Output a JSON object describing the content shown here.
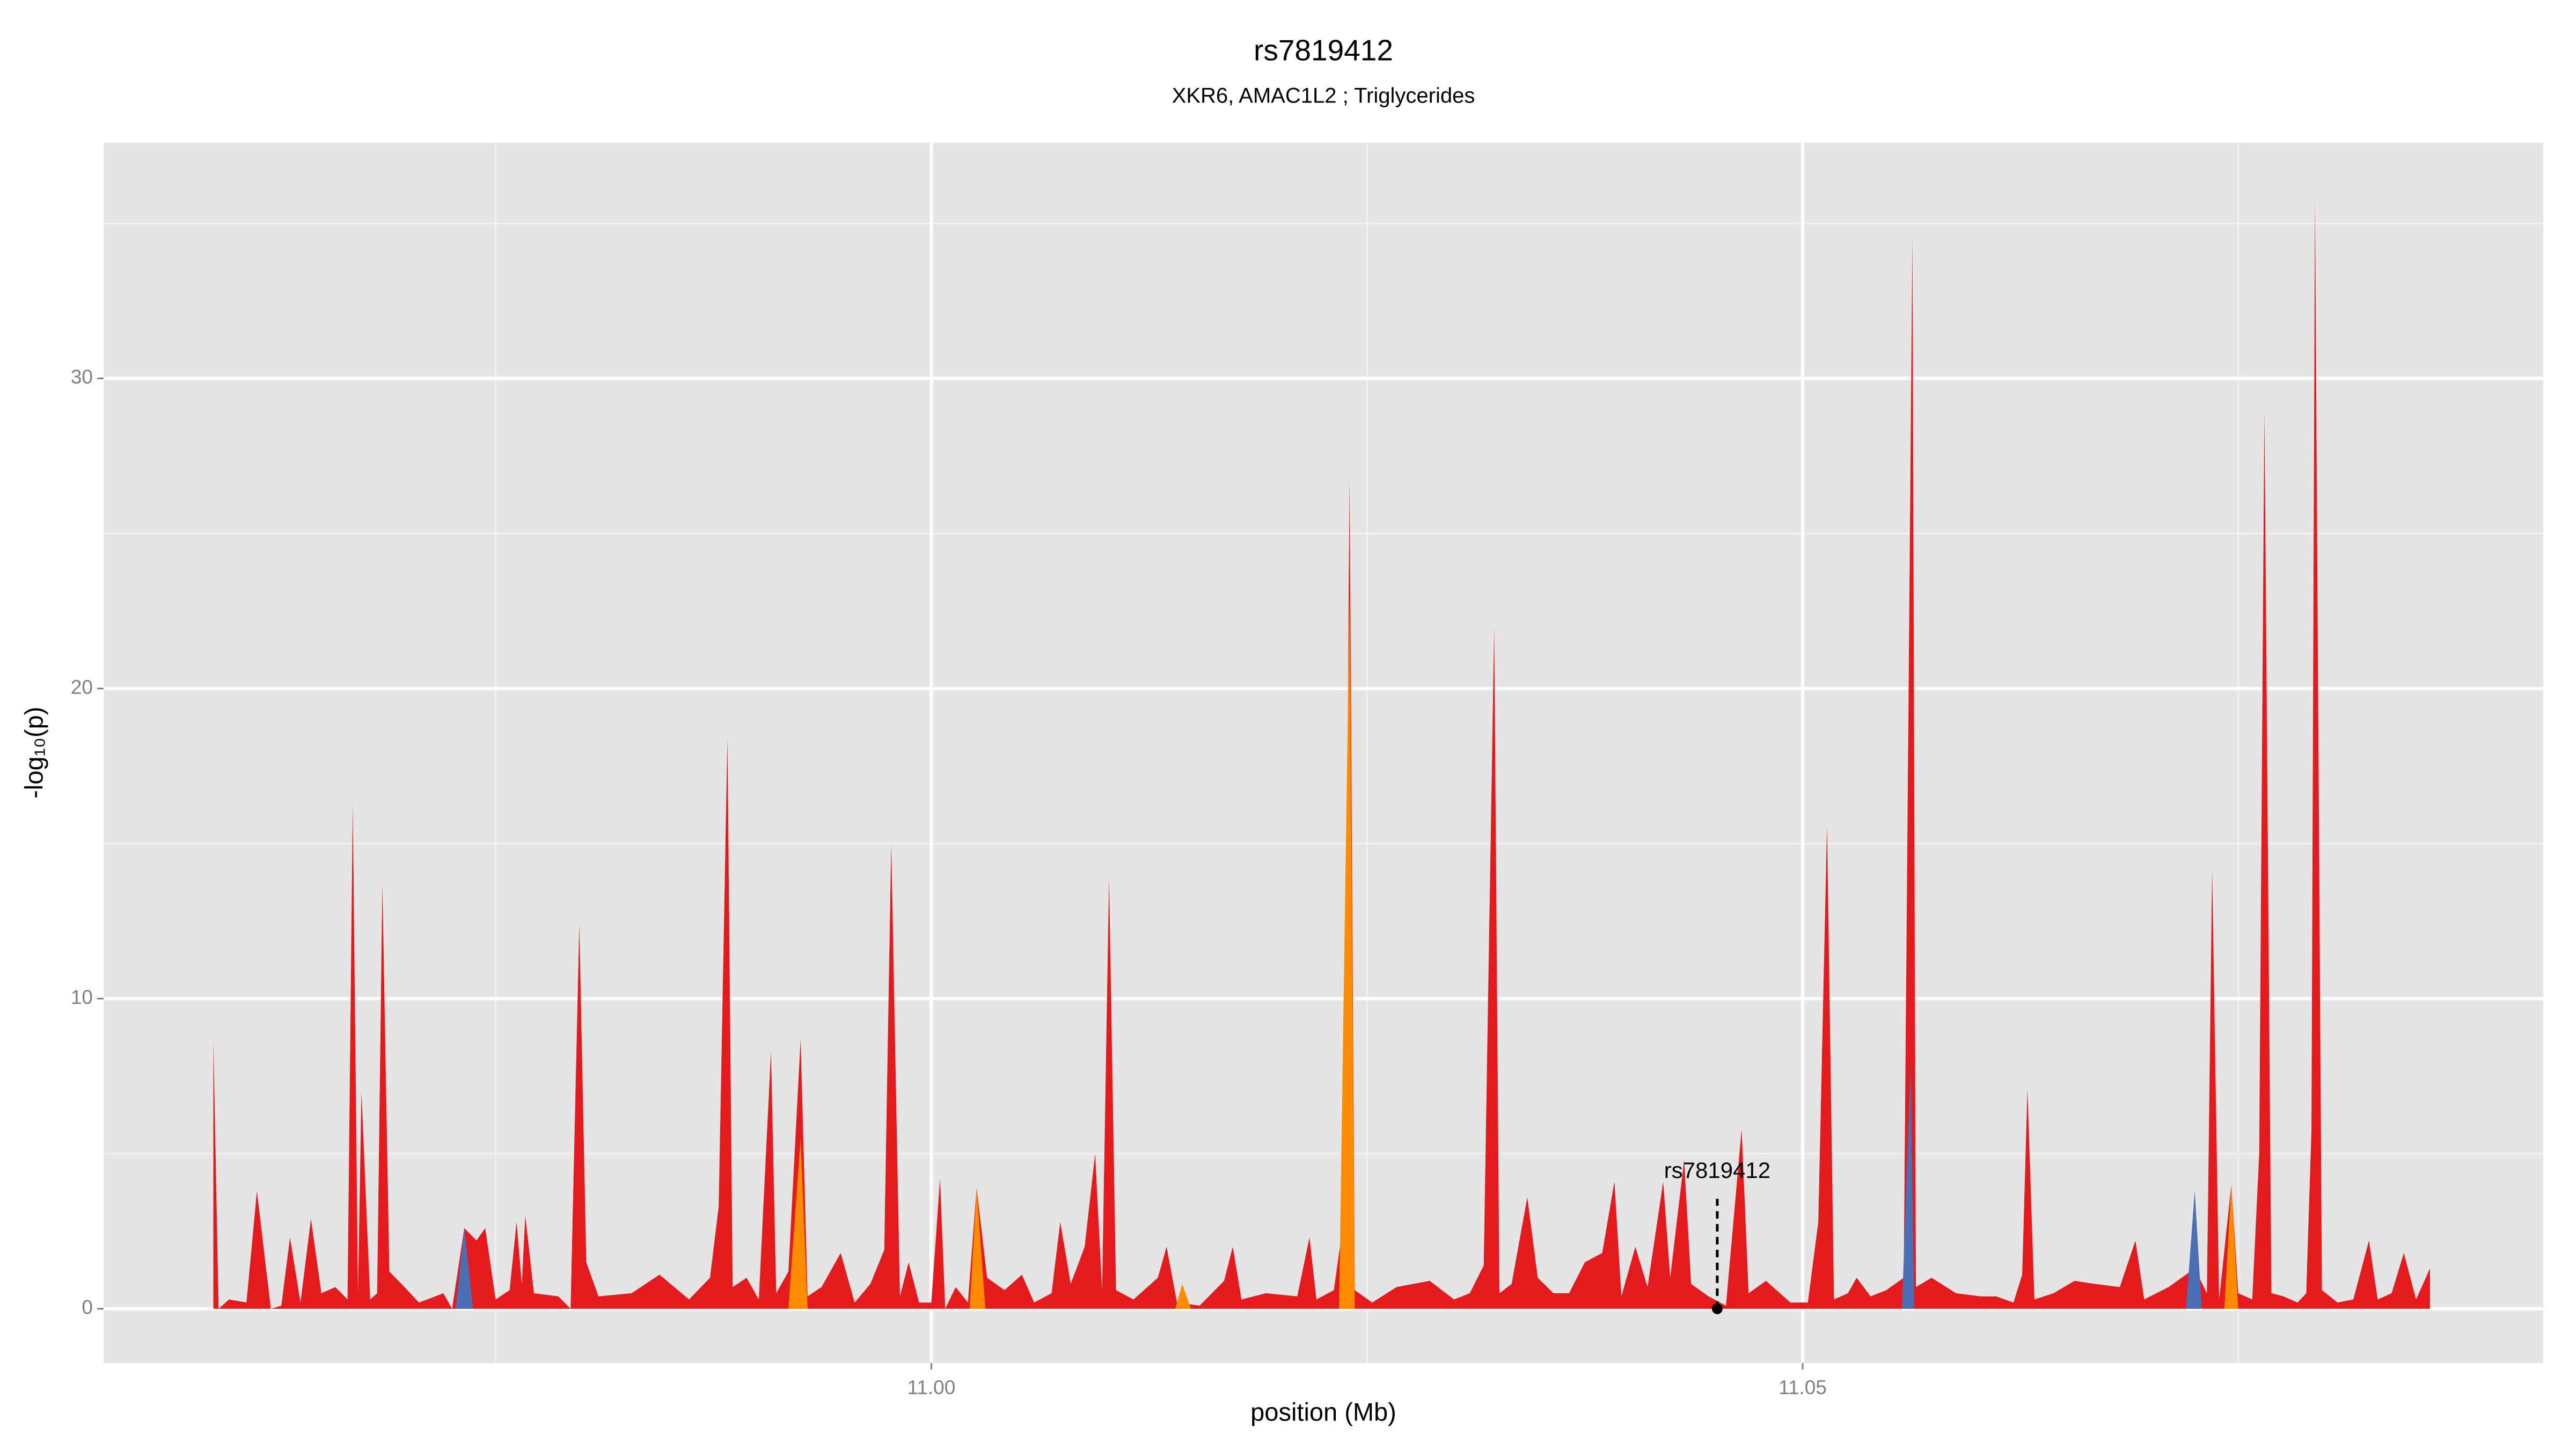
{
  "chart_data": {
    "type": "area",
    "title": "rs7819412",
    "subtitle": "XKR6, AMAC1L2 ; Triglycerides",
    "x_label": "position (Mb)",
    "y_label": "-log₁₀(p)",
    "xlim": [
      10.9525,
      11.0925
    ],
    "ylim": [
      -1.75,
      37.6
    ],
    "xticks": [
      {
        "value": 11.0,
        "label": "11.00"
      },
      {
        "value": 11.05,
        "label": "11.05"
      }
    ],
    "yticks": [
      0,
      10,
      20,
      30
    ],
    "grid": true,
    "minor_grid": true,
    "series": [
      {
        "color": "#e41a1c",
        "x": [
          10.9588,
          10.9591,
          10.9597,
          10.9607,
          10.9613,
          10.9621,
          10.9627,
          10.9632,
          10.9638,
          10.9644,
          10.965,
          10.9658,
          10.9665,
          10.9668,
          10.9671,
          10.9673,
          10.9678,
          10.9682,
          10.9685,
          10.9689,
          10.9696,
          10.9706,
          10.972,
          10.9725,
          10.9732,
          10.9739,
          10.9744,
          10.975,
          10.9758,
          10.9762,
          10.9765,
          10.9767,
          10.9772,
          10.9786,
          10.9793,
          10.9798,
          10.9802,
          10.9809,
          10.9828,
          10.9844,
          10.9861,
          10.9873,
          10.9878,
          10.9883,
          10.9886,
          10.9894,
          10.9901,
          10.9908,
          10.9911,
          10.9918,
          10.9925,
          10.9929,
          10.9937,
          10.9948,
          10.9956,
          10.9965,
          10.9973,
          10.9977,
          10.9982,
          10.9987,
          10.9993,
          11.0,
          11.0005,
          11.0008,
          11.0014,
          11.0021,
          11.0026,
          11.0032,
          11.0042,
          11.0052,
          11.0059,
          11.0069,
          11.0074,
          11.008,
          11.0088,
          11.0094,
          11.0098,
          11.0102,
          11.0106,
          11.0116,
          11.013,
          11.0135,
          11.0141,
          11.0154,
          11.0168,
          11.0173,
          11.0178,
          11.0192,
          11.021,
          11.0217,
          11.0221,
          11.0231,
          11.0237,
          11.024,
          11.0243,
          11.0253,
          11.0267,
          11.0286,
          11.03,
          11.0309,
          11.0317,
          11.0323,
          11.0326,
          11.0333,
          11.0342,
          11.0348,
          11.0357,
          11.0366,
          11.0375,
          11.0385,
          11.0392,
          11.0396,
          11.0404,
          11.0411,
          11.042,
          11.0424,
          11.0432,
          11.0436,
          11.0446,
          11.0456,
          11.0465,
          11.0469,
          11.0479,
          11.0493,
          11.0503,
          11.0509,
          11.0514,
          11.0518,
          11.0526,
          11.0531,
          11.0539,
          11.0548,
          11.0558,
          11.0563,
          11.0565,
          11.0574,
          11.0588,
          11.0602,
          11.0611,
          11.0621,
          11.0626,
          11.0629,
          11.0633,
          11.0644,
          11.0656,
          11.0668,
          11.0682,
          11.0691,
          11.0696,
          11.071,
          11.0725,
          11.0732,
          11.0735,
          11.0739,
          11.0746,
          11.075,
          11.0758,
          11.0762,
          11.0765,
          11.0769,
          11.0776,
          11.0784,
          11.0789,
          11.0792,
          11.0794,
          11.0798,
          11.0807,
          11.0816,
          11.0825,
          11.083,
          11.0838,
          11.0845,
          11.0852,
          11.086
        ],
        "values": [
          8.7,
          0,
          0.3,
          0.2,
          3.8,
          0,
          0.1,
          2.3,
          0.2,
          2.9,
          0.5,
          0.7,
          0.3,
          16.3,
          0.5,
          7,
          0.3,
          0.5,
          13.7,
          1.2,
          0.8,
          0.2,
          0.5,
          0,
          2.6,
          2.2,
          2.6,
          0.3,
          0.6,
          2.8,
          0.8,
          3,
          0.5,
          0.4,
          0,
          12.4,
          1.5,
          0.4,
          0.5,
          1.1,
          0.3,
          1,
          3.3,
          18.4,
          0.7,
          1,
          0.3,
          8.3,
          0.5,
          1.2,
          8.7,
          0.4,
          0.7,
          1.8,
          0.2,
          0.8,
          1.9,
          15,
          0.4,
          1.5,
          0.2,
          0.2,
          4.2,
          0,
          0.7,
          0.2,
          3.9,
          1,
          0.6,
          1.1,
          0.2,
          0.5,
          2.8,
          0.8,
          2,
          5,
          0.6,
          13.9,
          0.6,
          0.3,
          1,
          2,
          0.2,
          0.1,
          0.9,
          2,
          0.3,
          0.5,
          0.4,
          2.3,
          0.3,
          0.6,
          3,
          26.8,
          0.6,
          0.2,
          0.7,
          0.9,
          0.3,
          0.5,
          1.4,
          22,
          0.5,
          0.8,
          3.6,
          1,
          0.5,
          0.5,
          1.5,
          1.8,
          4.1,
          0.4,
          2,
          0.7,
          4.1,
          1,
          4.8,
          0.8,
          0.4,
          0.1,
          5.8,
          0.5,
          0.9,
          0.2,
          0.2,
          2.8,
          15.6,
          0.3,
          0.5,
          1,
          0.4,
          0.6,
          1,
          34.6,
          0.7,
          1,
          0.5,
          0.4,
          0.4,
          0.2,
          1.1,
          7.1,
          0.3,
          0.5,
          0.9,
          0.8,
          0.7,
          2.2,
          0.3,
          0.7,
          1.3,
          0.5,
          14.2,
          0.3,
          4,
          0.5,
          0.3,
          5,
          29,
          0.5,
          0.4,
          0.2,
          0.5,
          5.8,
          35.8,
          0.6,
          0.2,
          0.3,
          2.2,
          0.3,
          0.5,
          1.8,
          0.3,
          1.3
        ]
      },
      {
        "color": "#ff8c00",
        "x": [
          10.9918,
          10.9925,
          10.9929,
          11.0022,
          11.0026,
          11.0031,
          11.014,
          11.0144,
          11.0149,
          11.0234,
          11.024,
          11.0243,
          11.0742,
          11.0746,
          11.075
        ],
        "values": [
          0,
          5.5,
          0,
          0,
          3.9,
          0,
          0,
          0.8,
          0,
          0,
          23,
          0,
          0,
          4,
          0
        ]
      },
      {
        "color": "#4a6fb5",
        "x": [
          10.9727,
          10.9732,
          10.9737,
          11.0557,
          11.0562,
          11.0564,
          11.072,
          11.0725,
          11.0729
        ],
        "values": [
          0,
          2.6,
          0,
          0,
          8,
          0,
          0,
          3.8,
          0
        ]
      }
    ],
    "annotations": [
      {
        "text": "rs7819412",
        "x": 11.0451,
        "y": 0
      }
    ]
  }
}
